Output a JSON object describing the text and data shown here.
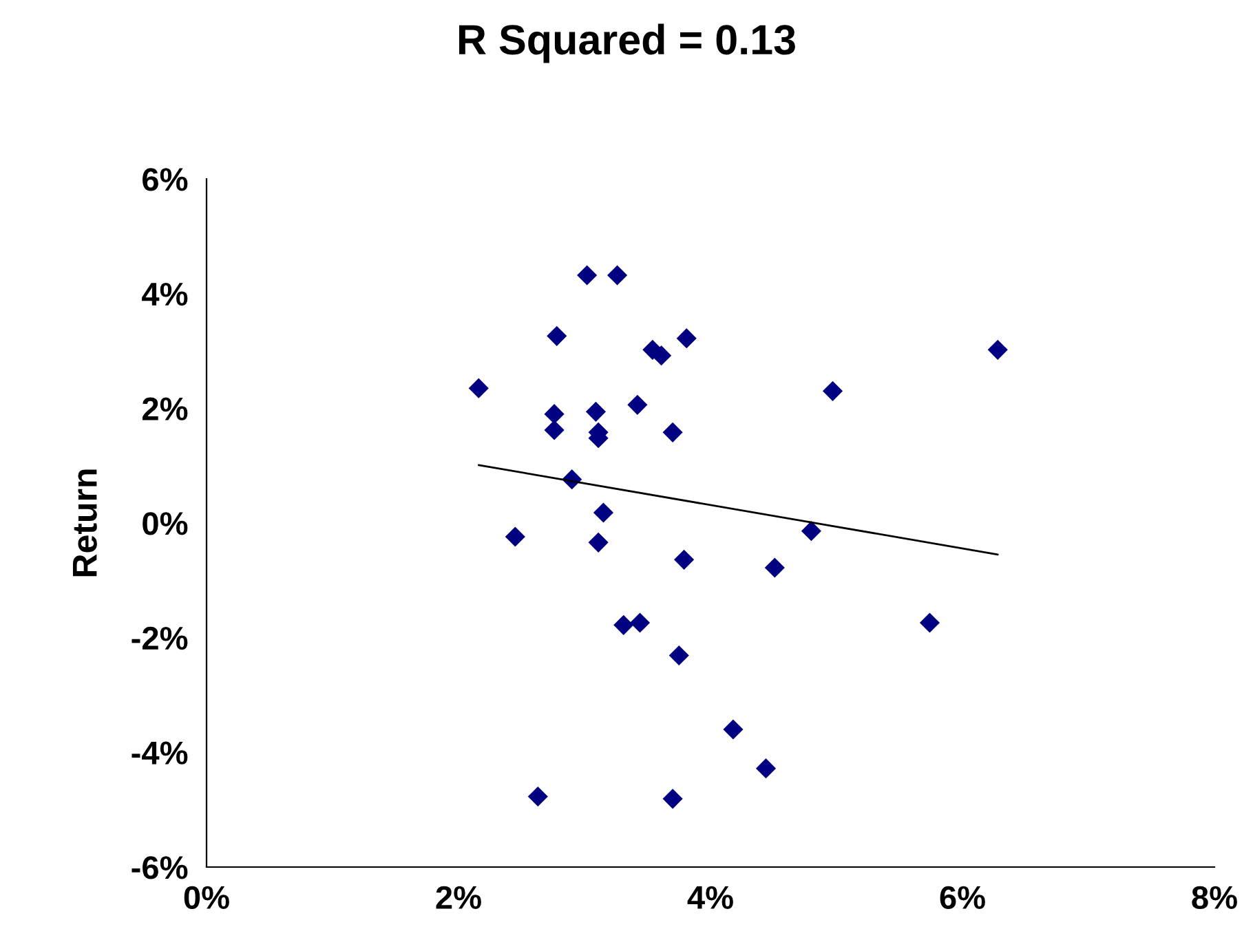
{
  "chart_data": {
    "type": "scatter",
    "title": "R Squared = 0.13",
    "ylabel": "Return",
    "x": [
      2.16,
      2.45,
      2.78,
      2.76,
      2.76,
      2.9,
      3.02,
      3.26,
      3.09,
      3.11,
      3.11,
      3.15,
      3.11,
      3.42,
      3.54,
      3.61,
      3.81,
      3.7,
      3.79,
      4.51,
      4.8,
      4.97,
      6.28,
      3.31,
      3.44,
      3.75,
      4.18,
      4.44,
      2.63,
      3.7,
      5.74
    ],
    "series": [
      {
        "color": "#000080",
        "marker": "diamond",
        "values": [
          2.35,
          -0.24,
          3.26,
          1.9,
          1.62,
          0.76,
          4.32,
          4.32,
          1.94,
          1.58,
          1.48,
          0.18,
          -0.34,
          2.06,
          3.02,
          2.92,
          3.22,
          1.58,
          -0.64,
          -0.78,
          -0.14,
          2.3,
          3.02,
          -1.78,
          -1.74,
          -2.31,
          -3.6,
          -4.28,
          -4.77,
          -4.81,
          -1.74
        ]
      },
      {
        "type": "line",
        "color": "#000000",
        "line_style": "solid",
        "marker": "none",
        "x": [
          2.16,
          6.28
        ],
        "values": [
          1.01,
          -0.55
        ]
      }
    ],
    "xlim": [
      0,
      8
    ],
    "xticks": [
      {
        "value": 0,
        "label": "0%"
      },
      {
        "value": 2,
        "label": "2%"
      },
      {
        "value": 4,
        "label": "4%"
      },
      {
        "value": 6,
        "label": "6%"
      },
      {
        "value": 8,
        "label": "8%"
      }
    ],
    "ylim": [
      -6,
      6
    ],
    "yticks": [
      {
        "value": -6,
        "label": "-6%"
      },
      {
        "value": -4,
        "label": "-4%"
      },
      {
        "value": -2,
        "label": "-2%"
      },
      {
        "value": 0,
        "label": "0%"
      },
      {
        "value": 2,
        "label": "2%"
      },
      {
        "value": 4,
        "label": "4%"
      },
      {
        "value": 6,
        "label": "6%"
      }
    ],
    "grid": false,
    "legend": false
  }
}
